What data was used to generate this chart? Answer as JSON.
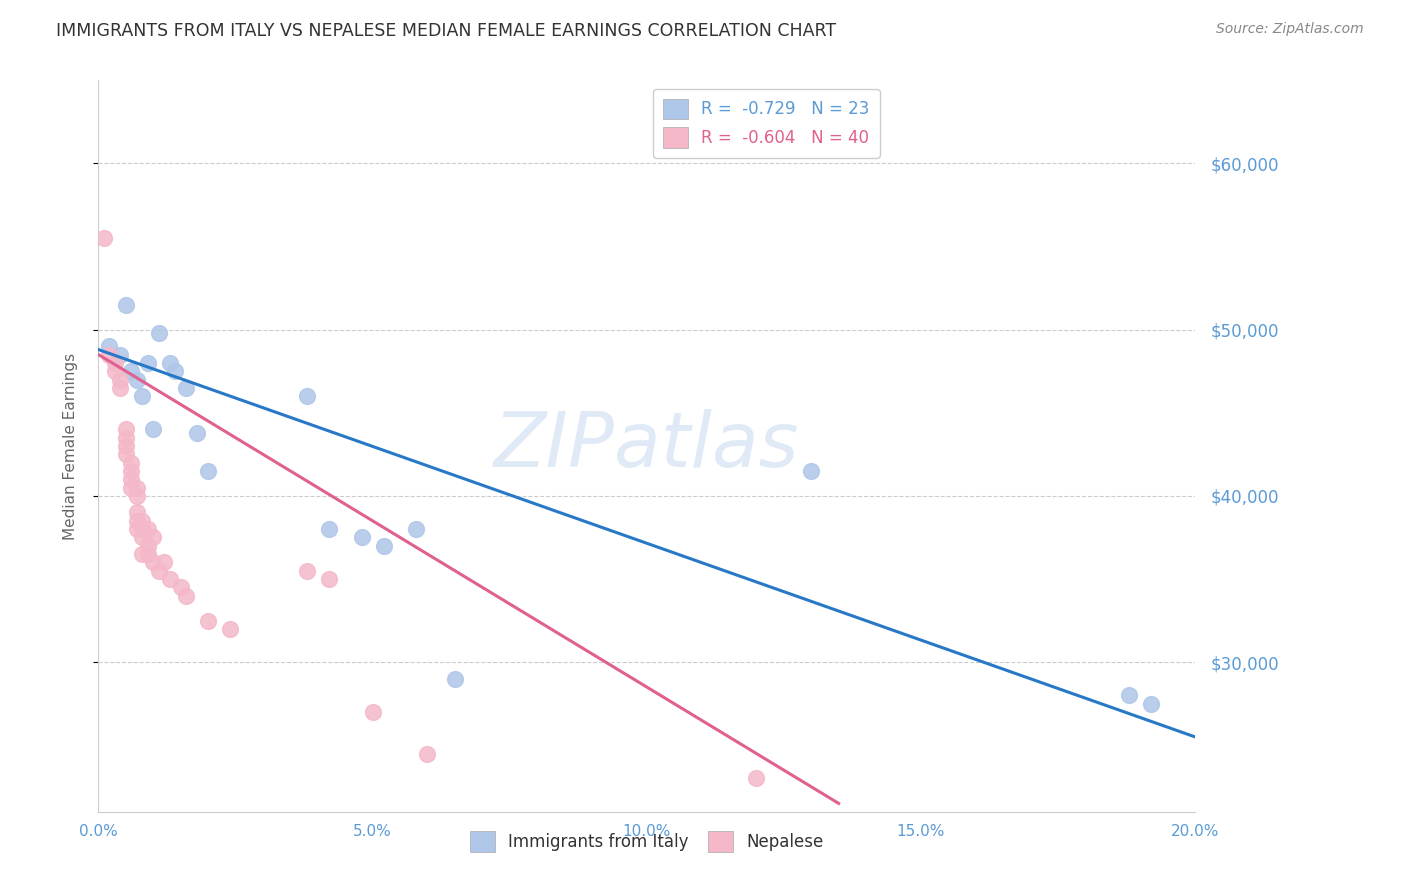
{
  "title": "IMMIGRANTS FROM ITALY VS NEPALESE MEDIAN FEMALE EARNINGS CORRELATION CHART",
  "source": "Source: ZipAtlas.com",
  "ylabel": "Median Female Earnings",
  "xlim": [
    0.0,
    0.2
  ],
  "ylim": [
    21000,
    65000
  ],
  "yticks": [
    30000,
    40000,
    50000,
    60000
  ],
  "xticks": [
    0.0,
    0.05,
    0.1,
    0.15,
    0.2
  ],
  "xtick_labels": [
    "0.0%",
    "5.0%",
    "10.0%",
    "15.0%",
    "20.0%"
  ],
  "ytick_labels": [
    "$30,000",
    "$40,000",
    "$50,000",
    "$60,000"
  ],
  "watermark": "ZIPatlas",
  "italy_color": "#aec6e8",
  "italy_line_color": "#2878c8",
  "nepalese_color": "#f4b8c8",
  "nepalese_line_color": "#e06090",
  "italy_scatter_x": [
    0.002,
    0.004,
    0.005,
    0.006,
    0.007,
    0.008,
    0.009,
    0.01,
    0.011,
    0.013,
    0.014,
    0.016,
    0.018,
    0.02,
    0.038,
    0.042,
    0.048,
    0.052,
    0.058,
    0.065,
    0.13,
    0.188,
    0.192
  ],
  "italy_scatter_y": [
    49000,
    48500,
    51500,
    47500,
    47000,
    46000,
    48000,
    44000,
    49800,
    48000,
    47500,
    46500,
    43800,
    41500,
    46000,
    38000,
    37500,
    37000,
    38000,
    29000,
    41500,
    28000,
    27500
  ],
  "nepalese_scatter_x": [
    0.001,
    0.002,
    0.003,
    0.003,
    0.004,
    0.004,
    0.005,
    0.005,
    0.005,
    0.005,
    0.006,
    0.006,
    0.006,
    0.006,
    0.007,
    0.007,
    0.007,
    0.007,
    0.007,
    0.008,
    0.008,
    0.008,
    0.008,
    0.009,
    0.009,
    0.009,
    0.01,
    0.01,
    0.011,
    0.012,
    0.013,
    0.015,
    0.016,
    0.02,
    0.024,
    0.038,
    0.042,
    0.05,
    0.06,
    0.12
  ],
  "nepalese_scatter_y": [
    55500,
    48500,
    48000,
    47500,
    46500,
    47000,
    43000,
    44000,
    43500,
    42500,
    41500,
    40500,
    41000,
    42000,
    40000,
    38500,
    38000,
    39000,
    40500,
    38500,
    38000,
    37500,
    36500,
    37000,
    36500,
    38000,
    36000,
    37500,
    35500,
    36000,
    35000,
    34500,
    34000,
    32500,
    32000,
    35500,
    35000,
    27000,
    24500,
    23000
  ],
  "italy_trend_x": [
    0.0,
    0.2
  ],
  "italy_trend_y": [
    48800,
    25500
  ],
  "nepalese_trend_x": [
    0.0,
    0.135
  ],
  "nepalese_trend_y": [
    48500,
    21500
  ],
  "background_color": "#ffffff",
  "grid_color": "#cccccc",
  "title_color": "#333333",
  "axis_label_color": "#666666",
  "right_ytick_color": "#5b9bd5",
  "legend_italy_r_color": "#5b9bd5",
  "legend_nepalese_r_color": "#e06090"
}
